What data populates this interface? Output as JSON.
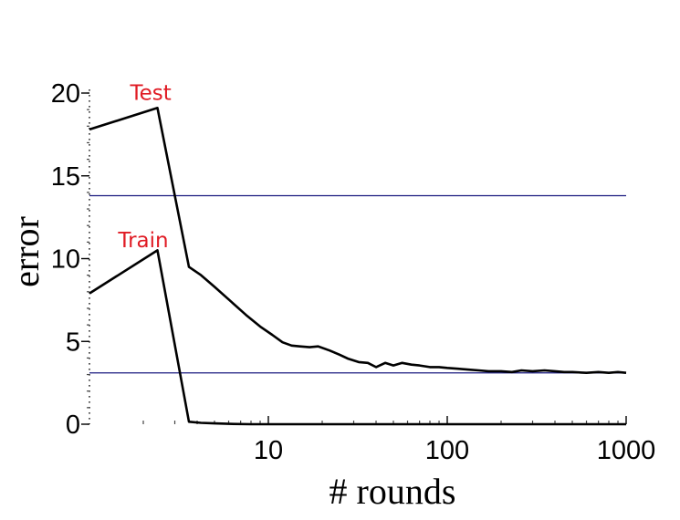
{
  "chart_data": {
    "type": "line",
    "xlabel": "# rounds",
    "ylabel": "error",
    "xscale": "log",
    "xlim": [
      1,
      1000
    ],
    "ylim": [
      0,
      20
    ],
    "xticks": [
      {
        "value": 10,
        "label": "10"
      },
      {
        "value": 100,
        "label": "100"
      },
      {
        "value": 1000,
        "label": "1000"
      }
    ],
    "yticks": [
      {
        "value": 0,
        "label": "0"
      },
      {
        "value": 5,
        "label": "5"
      },
      {
        "value": 10,
        "label": "10"
      },
      {
        "value": 15,
        "label": "15"
      },
      {
        "value": 20,
        "label": "20"
      }
    ],
    "grid": false,
    "reference_lines": [
      {
        "y": 13.8,
        "color": "#1a1a80"
      },
      {
        "y": 3.1,
        "color": "#1a1a80"
      }
    ],
    "annotations": [
      {
        "text": "Test",
        "x": 2.2,
        "y": 19.6,
        "color": "#e01b24"
      },
      {
        "text": "Train",
        "x": 2.0,
        "y": 10.7,
        "color": "#e01b24"
      }
    ],
    "series": [
      {
        "color": "#000000",
        "x": [
          1,
          2.4,
          3.6,
          4.2,
          5,
          6.2,
          7.5,
          9,
          10.5,
          12,
          13.5,
          15,
          17,
          19,
          22,
          25,
          28,
          32,
          36,
          40,
          45,
          50,
          56,
          63,
          70,
          80,
          90,
          100,
          115,
          130,
          150,
          170,
          200,
          230,
          260,
          300,
          350,
          400,
          450,
          500,
          600,
          700,
          800,
          900,
          1000
        ],
        "y": [
          17.8,
          19.1,
          9.5,
          9.0,
          8.3,
          7.4,
          6.6,
          5.9,
          5.4,
          4.95,
          4.75,
          4.7,
          4.65,
          4.7,
          4.45,
          4.2,
          3.95,
          3.75,
          3.7,
          3.45,
          3.7,
          3.55,
          3.7,
          3.6,
          3.55,
          3.45,
          3.45,
          3.4,
          3.35,
          3.3,
          3.25,
          3.2,
          3.2,
          3.15,
          3.25,
          3.2,
          3.25,
          3.2,
          3.15,
          3.15,
          3.1,
          3.15,
          3.1,
          3.15,
          3.1
        ]
      },
      {
        "color": "#000000",
        "x": [
          1,
          2.4,
          3.6,
          4.2,
          5,
          6,
          8,
          10,
          20,
          50,
          100,
          1000
        ],
        "y": [
          7.9,
          10.5,
          0.15,
          0.08,
          0.05,
          0.02,
          0,
          0,
          0,
          0,
          0,
          0
        ]
      }
    ]
  }
}
